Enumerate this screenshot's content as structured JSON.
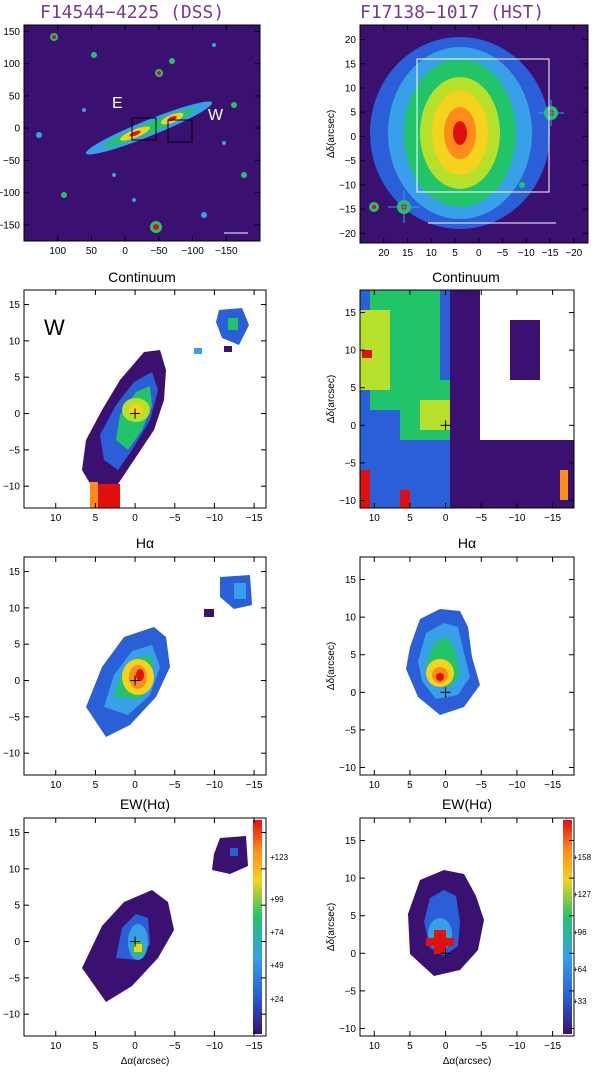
{
  "titles": {
    "left": "F14544−4225 (DSS)",
    "right": "F17138−1017 (HST)"
  },
  "subtitles": {
    "continuum": "Continuum",
    "halpha": "Hα",
    "ew": "EW(Hα)"
  },
  "axis_labels": {
    "y": "Δδ(arcsec)",
    "x": "Δα(arcsec)"
  },
  "labels": {
    "east": "E",
    "west": "W",
    "panel_marker": "W"
  },
  "ticks": {
    "dss_left_x": [
      "100",
      "50",
      "0",
      "−50",
      "−100",
      "−150"
    ],
    "dss_left_y": [
      "150",
      "100",
      "50",
      "0",
      "−50",
      "−100",
      "−150"
    ],
    "hst_right_x": [
      "20",
      "15",
      "10",
      "5",
      "0",
      "−5",
      "−10",
      "−15",
      "−20"
    ],
    "hst_right_y": [
      "20",
      "15",
      "10",
      "5",
      "0",
      "−5",
      "−10",
      "−15",
      "−20"
    ],
    "map_x": [
      "10",
      "5",
      "0",
      "−5",
      "−10",
      "−15"
    ],
    "map_y_left": [
      "15",
      "10",
      "5",
      "0",
      "−5",
      "−10"
    ],
    "map_y_right": [
      "15",
      "10",
      "5",
      "0",
      "−5",
      "−10"
    ]
  },
  "colorbars": {
    "left": [
      "+123",
      "+99",
      "+74",
      "+49",
      "+24"
    ],
    "right": [
      "+158",
      "+127",
      "+96",
      "+64",
      "+33"
    ]
  },
  "colors": {
    "title": "#7a3a8c",
    "background_map": "#3a1170",
    "scale_low": "#3a1170",
    "scale_mid": "#22c46a",
    "scale_high": "#e01010"
  }
}
